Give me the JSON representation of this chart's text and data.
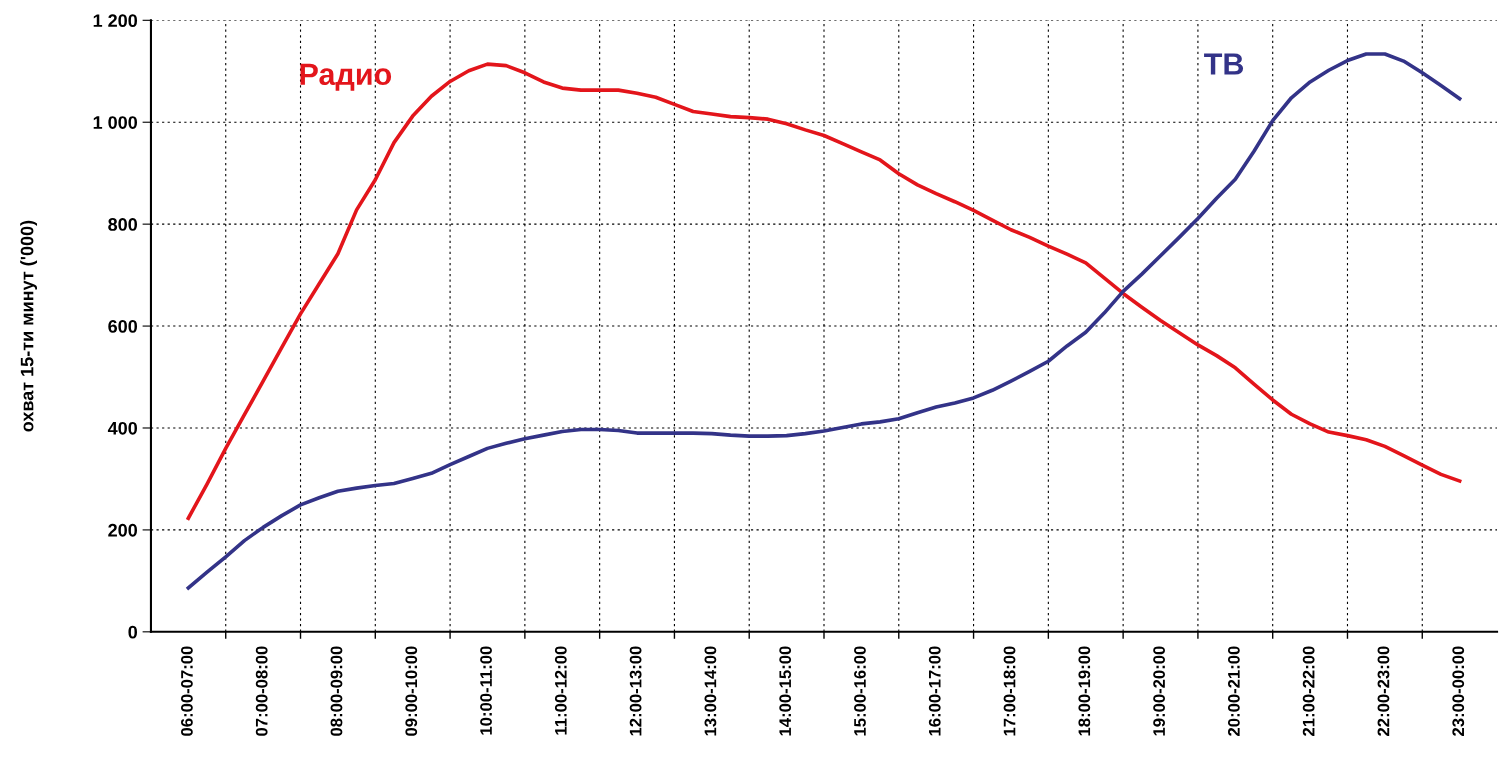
{
  "chart_data": {
    "type": "line",
    "ylabel": "охват 15-ти минут ('000)",
    "categories": [
      "06:00-07:00",
      null,
      null,
      null,
      "07:00-08:00",
      null,
      null,
      null,
      "08:00-09:00",
      null,
      null,
      null,
      "09:00-10:00",
      null,
      null,
      null,
      "10:00-11:00",
      null,
      null,
      null,
      "11:00-12:00",
      null,
      null,
      null,
      "12:00-13:00",
      null,
      null,
      null,
      "13:00-14:00",
      null,
      null,
      null,
      "14:00-15:00",
      null,
      null,
      null,
      "15:00-16:00",
      null,
      null,
      null,
      "16:00-17:00",
      null,
      null,
      null,
      "17:00-18:00",
      null,
      null,
      null,
      "18:00-19:00",
      null,
      null,
      null,
      "19:00-20:00",
      null,
      null,
      null,
      "20:00-21:00",
      null,
      null,
      null,
      "21:00-22:00",
      null,
      null,
      null,
      "22:00-23:00",
      null,
      null,
      null,
      "23:00-00:00"
    ],
    "ylim": [
      0,
      1200
    ],
    "yticks": [
      0,
      200,
      400,
      600,
      800,
      {
        "value": 1000,
        "label": "1 000"
      },
      {
        "value": 1200,
        "label": "1 200"
      }
    ],
    "grid": true,
    "line_style": "solid",
    "marker": "none",
    "series": [
      {
        "name": "Радио",
        "color": "#e3151b",
        "values": [
          223,
          290,
          360,
          426,
          492,
          558,
          624,
          683,
          742,
          828,
          887,
          960,
          1012,
          1051,
          1080,
          1101,
          1114,
          1111,
          1097,
          1079,
          1067,
          1063,
          1063,
          1063,
          1057,
          1049,
          1035,
          1021,
          1016,
          1011,
          1009,
          1006,
          997,
          985,
          974,
          958,
          942,
          926,
          899,
          877,
          860,
          844,
          827,
          808,
          789,
          774,
          757,
          741,
          724,
          694,
          664,
          637,
          611,
          587,
          563,
          542,
          518,
          486,
          455,
          427,
          408,
          392,
          385,
          377,
          364,
          346,
          327,
          309,
          296
        ]
      },
      {
        "name": "ТВ",
        "color": "#333388",
        "values": [
          86,
          117,
          147,
          179,
          205,
          228,
          249,
          263,
          276,
          282,
          287,
          291,
          301,
          311,
          328,
          344,
          360,
          370,
          379,
          386,
          393,
          397,
          397,
          395,
          390,
          390,
          390,
          390,
          389,
          386,
          384,
          384,
          385,
          389,
          394,
          401,
          408,
          412,
          418,
          430,
          441,
          449,
          459,
          474,
          492,
          511,
          531,
          561,
          588,
          626,
          668,
          702,
          738,
          774,
          811,
          851,
          888,
          943,
          1003,
          1048,
          1079,
          1102,
          1121,
          1134,
          1134,
          1120,
          1097,
          1072,
          1046
        ]
      }
    ]
  }
}
